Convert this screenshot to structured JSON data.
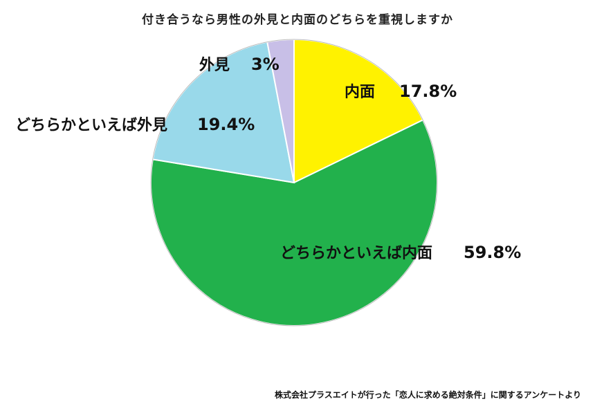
{
  "chart_data": {
    "type": "pie",
    "title": "付き合うなら男性の外見と内面のどちらを重視しますか",
    "slices": [
      {
        "label": "内面",
        "value": 17.8,
        "value_label": "17.8%",
        "color": "#fff200"
      },
      {
        "label": "どちらかといえば内面",
        "value": 59.8,
        "value_label": "59.8%",
        "color": "#22b14c"
      },
      {
        "label": "どちらかといえば外見",
        "value": 19.4,
        "value_label": "19.4%",
        "color": "#99d9ea"
      },
      {
        "label": "外見",
        "value": 3,
        "value_label": "3%",
        "color": "#c8bfe7"
      }
    ],
    "start": "12 o'clock",
    "direction": "clockwise",
    "legend": "none (labels on chart)"
  },
  "source": "株式会社プラスエイトが行った「恋人に求める絶対条件」に関するアンケートより"
}
